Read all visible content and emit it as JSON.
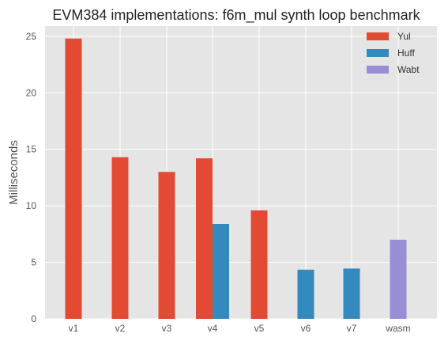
{
  "chart_data": {
    "type": "bar",
    "title": "EVM384 implementations: f6m_mul synth loop benchmark",
    "xlabel": "",
    "ylabel": "Milliseconds",
    "categories": [
      "v1",
      "v2",
      "v3",
      "v4",
      "v5",
      "v6",
      "v7",
      "wasm"
    ],
    "ylim": [
      0,
      25.9
    ],
    "yticks": [
      0,
      5,
      10,
      15,
      20,
      25
    ],
    "grid": true,
    "legend_position": "top-right",
    "series": [
      {
        "name": "Yul",
        "color": "#E24A33",
        "values": [
          24.8,
          14.3,
          13.0,
          14.2,
          9.6,
          null,
          null,
          null
        ]
      },
      {
        "name": "Huff",
        "color": "#348ABD",
        "values": [
          null,
          null,
          null,
          8.4,
          null,
          4.35,
          4.45,
          null
        ]
      },
      {
        "name": "Wabt",
        "color": "#988ED5",
        "values": [
          null,
          null,
          null,
          null,
          null,
          null,
          null,
          7.0
        ]
      }
    ]
  }
}
